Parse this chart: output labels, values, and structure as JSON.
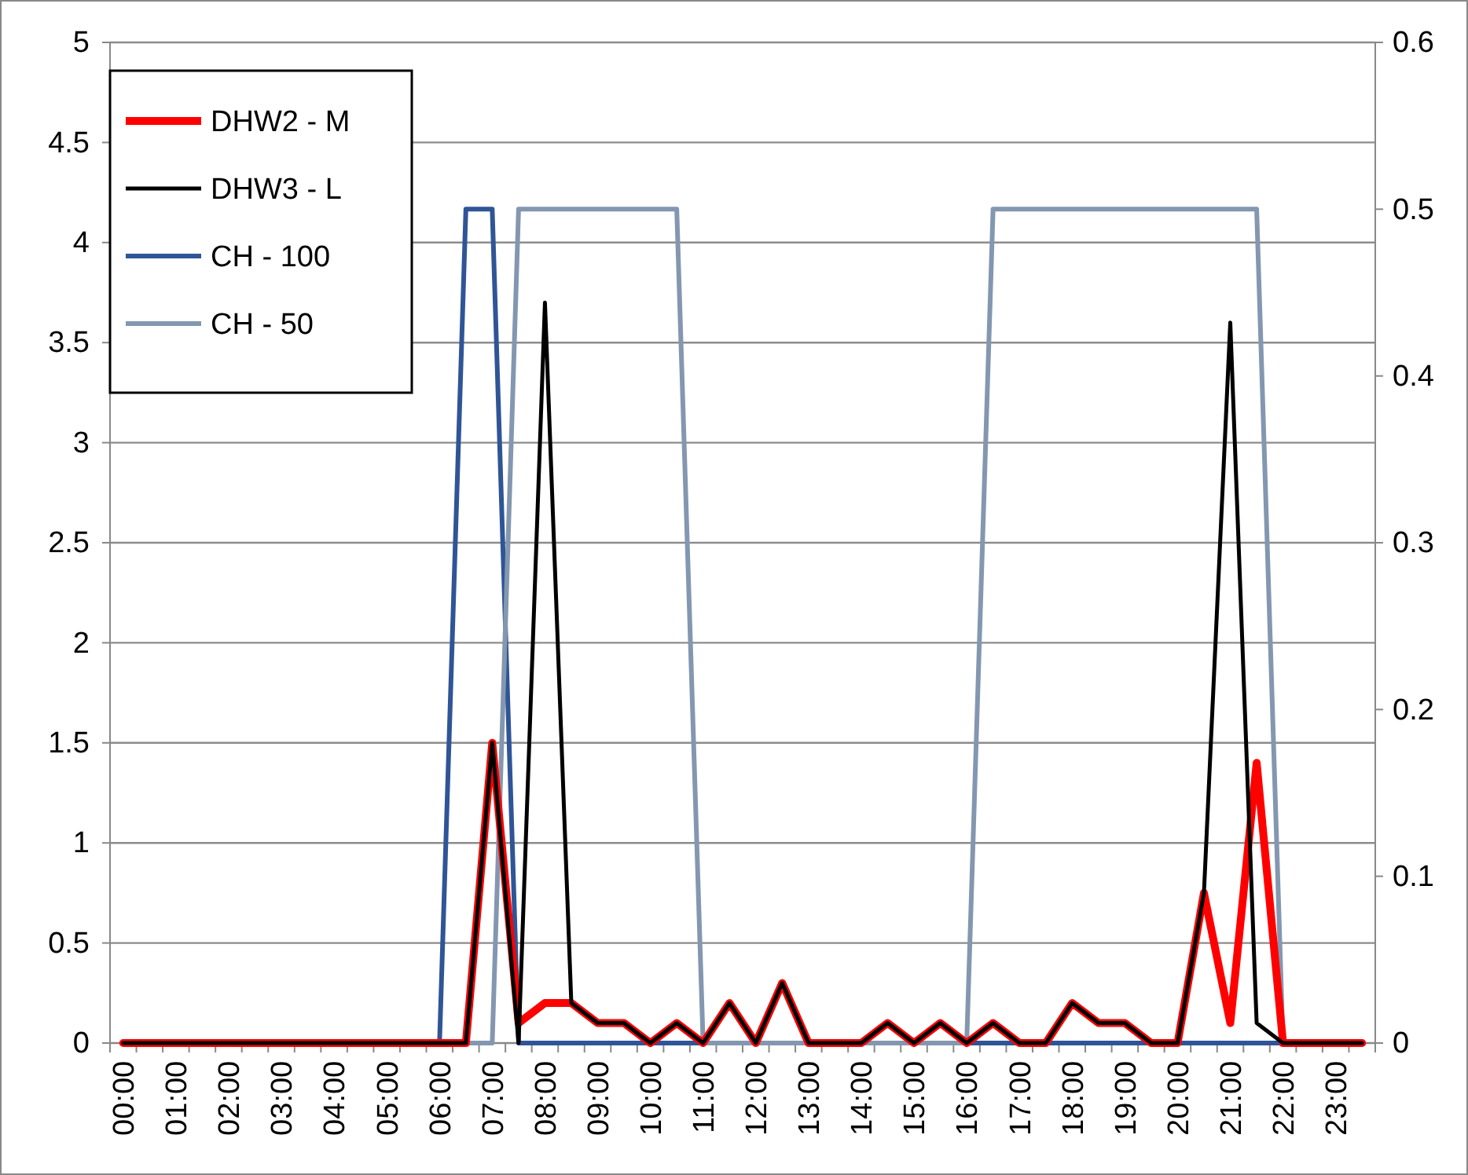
{
  "chart_data": {
    "type": "line",
    "categories": [
      "00:00",
      null,
      "01:00",
      null,
      "02:00",
      null,
      "03:00",
      null,
      "04:00",
      null,
      "05:00",
      null,
      "06:00",
      null,
      "07:00",
      null,
      "08:00",
      null,
      "09:00",
      null,
      "10:00",
      null,
      "11:00",
      null,
      "12:00",
      null,
      "13:00",
      null,
      "14:00",
      null,
      "15:00",
      null,
      "16:00",
      null,
      "17:00",
      null,
      "18:00",
      null,
      "19:00",
      null,
      "20:00",
      null,
      "21:00",
      null,
      "22:00",
      null,
      "23:00",
      null
    ],
    "series": [
      {
        "name": "DHW2 - M",
        "color": "#ff0000",
        "values": [
          0,
          0,
          0,
          0,
          0,
          0,
          0,
          0,
          0,
          0,
          0,
          0,
          0,
          0,
          1.5,
          0.1,
          0.2,
          0.2,
          0.1,
          0.1,
          0,
          0.1,
          0,
          0.2,
          0,
          0.3,
          0,
          0,
          0,
          0.1,
          0,
          0.1,
          0,
          0.1,
          0,
          0,
          0.2,
          0.1,
          0.1,
          0,
          0,
          0.75,
          0.1,
          1.4,
          0,
          0,
          0,
          0
        ]
      },
      {
        "name": "DHW3 - L",
        "color": "#000000",
        "values": [
          0,
          0,
          0,
          0,
          0,
          0,
          0,
          0,
          0,
          0,
          0,
          0,
          0,
          0,
          1.5,
          0,
          3.7,
          0.2,
          0.1,
          0.1,
          0,
          0.1,
          0,
          0.2,
          0,
          0.3,
          0,
          0,
          0,
          0.1,
          0,
          0.1,
          0,
          0.1,
          0,
          0,
          0.2,
          0.1,
          0.1,
          0,
          0,
          0.75,
          3.6,
          0.1,
          0,
          0,
          0,
          0
        ]
      },
      {
        "name": "CH - 100",
        "color": "#2f5597",
        "axis": "y2",
        "values": [
          null,
          null,
          null,
          null,
          null,
          null,
          null,
          null,
          null,
          null,
          null,
          0,
          0,
          0.5,
          0.5,
          0,
          0,
          0,
          0,
          0,
          0,
          0,
          0,
          0,
          0,
          0,
          0,
          0,
          0,
          0,
          0,
          0,
          0,
          0,
          0,
          0,
          0,
          0,
          0,
          0,
          0,
          0,
          0,
          0,
          0,
          0,
          null,
          null
        ]
      },
      {
        "name": "CH - 50",
        "color": "#8497b0",
        "axis": "y2",
        "values": [
          0,
          0,
          0,
          0,
          0,
          0,
          0,
          0,
          0,
          0,
          0,
          0,
          0,
          0,
          0,
          0.5,
          0.5,
          0.5,
          0.5,
          0.5,
          0.5,
          0.5,
          0,
          0,
          0,
          0,
          0,
          0,
          0,
          0,
          0,
          0,
          0,
          0.5,
          0.5,
          0.5,
          0.5,
          0.5,
          0.5,
          0.5,
          0.5,
          0.5,
          0.5,
          0.5,
          0,
          0,
          0,
          0
        ]
      }
    ],
    "ylim": [
      0,
      5
    ],
    "yticks": [
      0,
      0.5,
      1,
      1.5,
      2,
      2.5,
      3,
      3.5,
      4,
      4.5,
      5
    ],
    "y2lim": [
      0,
      0.6
    ],
    "y2ticks": [
      0,
      0.1,
      0.2,
      0.3,
      0.4,
      0.5,
      0.6
    ],
    "grid": "y",
    "legend": "top left",
    "line_style": "solid",
    "marker": "none"
  }
}
